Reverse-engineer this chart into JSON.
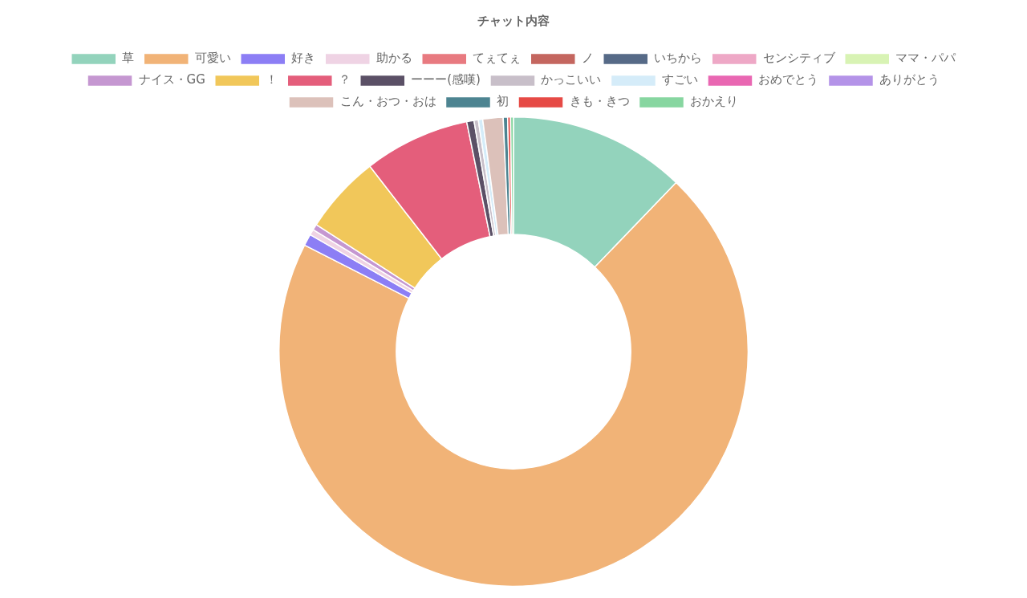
{
  "chart_data": {
    "type": "donut",
    "title": "チャット内容",
    "categories": [
      "草",
      "可愛い",
      "好き",
      "助かる",
      "てぇてぇ",
      "ノ",
      "いちから",
      "センシティブ",
      "ママ・パパ",
      "ナイス・GG",
      "！",
      "？",
      "ーーー(感嘆)",
      "かっこいい",
      "すごい",
      "おめでとう",
      "ありがとう",
      "こん・おつ・おは",
      "初",
      "きも・きつ",
      "おかえり"
    ],
    "values": [
      12.2,
      70.3,
      0.8,
      0.4,
      0,
      0,
      0,
      0,
      0,
      0.4,
      5.4,
      7.3,
      0.5,
      0.3,
      0.3,
      0,
      0,
      1.4,
      0.3,
      0.2,
      0.2
    ],
    "colors": [
      "#93d3bc",
      "#f1b377",
      "#8c7ef5",
      "#efd3e4",
      "#e87a80",
      "#c4665f",
      "#566a87",
      "#eea8c6",
      "#d8f3b4",
      "#c597d1",
      "#f1c75a",
      "#e45e7b",
      "#5b5066",
      "#c8bfc9",
      "#d5ecf9",
      "#e967b2",
      "#b493e8",
      "#dcc1ba",
      "#4d8491",
      "#e64a45",
      "#87d6a0"
    ],
    "legend": "top"
  }
}
